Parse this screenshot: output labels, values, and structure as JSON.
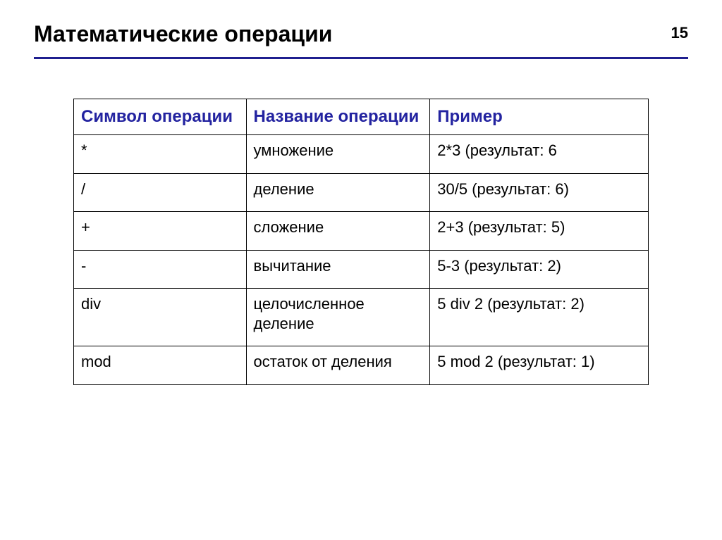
{
  "page": {
    "title": "Математические операции",
    "number": "15"
  },
  "table": {
    "columns": [
      "Символ операции",
      "Название операции",
      "Пример"
    ],
    "rows": [
      [
        "*",
        "умножение",
        "2*3 (результат: 6"
      ],
      [
        "/",
        "деление",
        "30/5 (результат: 6)"
      ],
      [
        "+",
        "сложение",
        "2+3 (результат: 5)"
      ],
      [
        "-",
        "вычитание",
        "5-3 (результат: 2)"
      ],
      [
        "div",
        "целочисленное деление",
        "5 div 2 (результат: 2)"
      ],
      [
        "mod",
        "остаток от деления",
        "5 mod 2 (результат: 1)"
      ]
    ],
    "header_color": "#2323a0",
    "border_color": "#000000",
    "rule_color": "#1f1f8f",
    "background_color": "#ffffff",
    "title_fontsize": 32,
    "header_fontsize": 24,
    "cell_fontsize": 22,
    "column_widths_pct": [
      30,
      32,
      38
    ]
  }
}
